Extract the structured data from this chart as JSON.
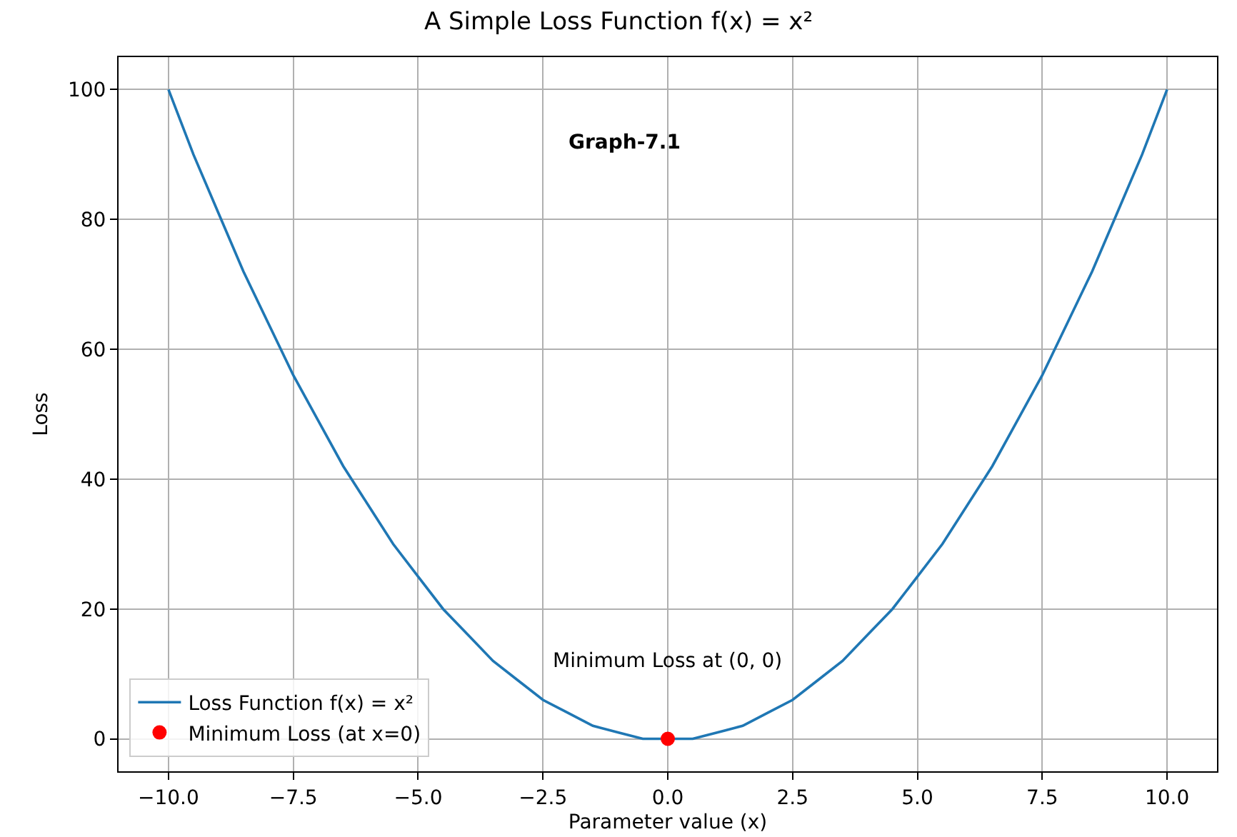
{
  "chart_data": {
    "type": "line",
    "title": "A Simple Loss Function f(x) = x²",
    "xlabel": "Parameter value (x)",
    "ylabel": "Loss",
    "annotations": [
      "Graph-7.1",
      "Minimum Loss at (0, 0)"
    ],
    "series": [
      {
        "name": "Loss Function f(x) = x²",
        "color": "#1f77b4",
        "marker": "none",
        "line_style": "solid",
        "x": [
          -10,
          -9.5,
          -9,
          -8.5,
          -8,
          -7.5,
          -7,
          -6.5,
          -6,
          -5.5,
          -5,
          -4.5,
          -4,
          -3.5,
          -3,
          -2.5,
          -2,
          -1.5,
          -1,
          -0.5,
          0,
          0.5,
          1,
          1.5,
          2,
          2.5,
          3,
          3.5,
          4,
          4.5,
          5,
          5.5,
          6,
          6.5,
          7,
          7.5,
          8,
          8.5,
          9,
          9.5,
          10
        ],
        "values": [
          100,
          90,
          81,
          72,
          64,
          56,
          49,
          42,
          36,
          30,
          25,
          20,
          16,
          12,
          9,
          6,
          4,
          2,
          1,
          0,
          0,
          0,
          1,
          2,
          4,
          6,
          9,
          12,
          16,
          20,
          25,
          30,
          36,
          42,
          49,
          56,
          64,
          72,
          81,
          90,
          100
        ]
      },
      {
        "name": "Minimum Loss (at x=0)",
        "type": "scatter",
        "color": "#ff0000",
        "marker": "circle",
        "x": [
          0
        ],
        "values": [
          0
        ]
      }
    ],
    "xlim": [
      -11,
      11
    ],
    "xticks": [
      {
        "value": -10,
        "label": "−10.0"
      },
      {
        "value": -7.5,
        "label": "−7.5"
      },
      {
        "value": -5,
        "label": "−5.0"
      },
      {
        "value": -2.5,
        "label": "−2.5"
      },
      {
        "value": 0,
        "label": "0.0"
      },
      {
        "value": 2.5,
        "label": "2.5"
      },
      {
        "value": 5,
        "label": "5.0"
      },
      {
        "value": 7.5,
        "label": "7.5"
      },
      {
        "value": 10,
        "label": "10.0"
      }
    ],
    "ylim": [
      -5,
      105
    ],
    "yticks": [
      0,
      20,
      40,
      60,
      80,
      100
    ],
    "grid": true,
    "legend": "bottom left"
  }
}
